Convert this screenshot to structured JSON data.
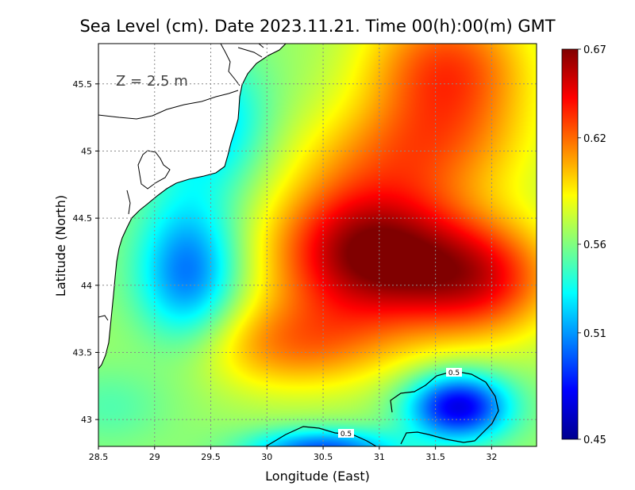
{
  "chart_data": {
    "type": "heatmap",
    "title": "Sea Level (cm). Date 2023.11.21. Time 00(h):00(m) GMT",
    "xlabel": "Longitude (East)",
    "ylabel": "Latitude (North)",
    "xlim": [
      28.5,
      32.4
    ],
    "ylim": [
      42.8,
      45.8
    ],
    "x_ticks": [
      "28.5",
      "29",
      "29.5",
      "30",
      "30.5",
      "31",
      "31.5",
      "32"
    ],
    "x_tick_values": [
      28.5,
      29,
      29.5,
      30,
      30.5,
      31,
      31.5,
      32
    ],
    "y_ticks": [
      "43",
      "43.5",
      "44",
      "44.5",
      "45",
      "45.5"
    ],
    "y_tick_values": [
      43,
      43.5,
      44,
      44.5,
      45,
      45.5
    ],
    "grid": true,
    "depth_label": "Z = 2.5 m",
    "colorbar": {
      "min": 0.45,
      "max": 0.67,
      "ticks": [
        "0.67",
        "0.62",
        "0.56",
        "0.51",
        "0.45"
      ],
      "tick_values": [
        0.67,
        0.62,
        0.56,
        0.51,
        0.45
      ],
      "stops": [
        "#00008f",
        "#0000ff",
        "#0080ff",
        "#00ffff",
        "#80ff80",
        "#ffff00",
        "#ff8000",
        "#ff0000",
        "#800000"
      ]
    },
    "contour_level": 0.5,
    "contour_labels": [
      "0.5",
      "0.5"
    ],
    "field_features": [
      {
        "name": "central high",
        "lon": 30.9,
        "lat": 44.25,
        "value": 0.67
      },
      {
        "name": "north-east high",
        "lon": 31.6,
        "lat": 45.6,
        "value": 0.63
      },
      {
        "name": "western low",
        "lon": 29.3,
        "lat": 44.1,
        "value": 0.5
      },
      {
        "name": "south-east low",
        "lon": 31.7,
        "lat": 43.1,
        "value": 0.47
      }
    ]
  }
}
